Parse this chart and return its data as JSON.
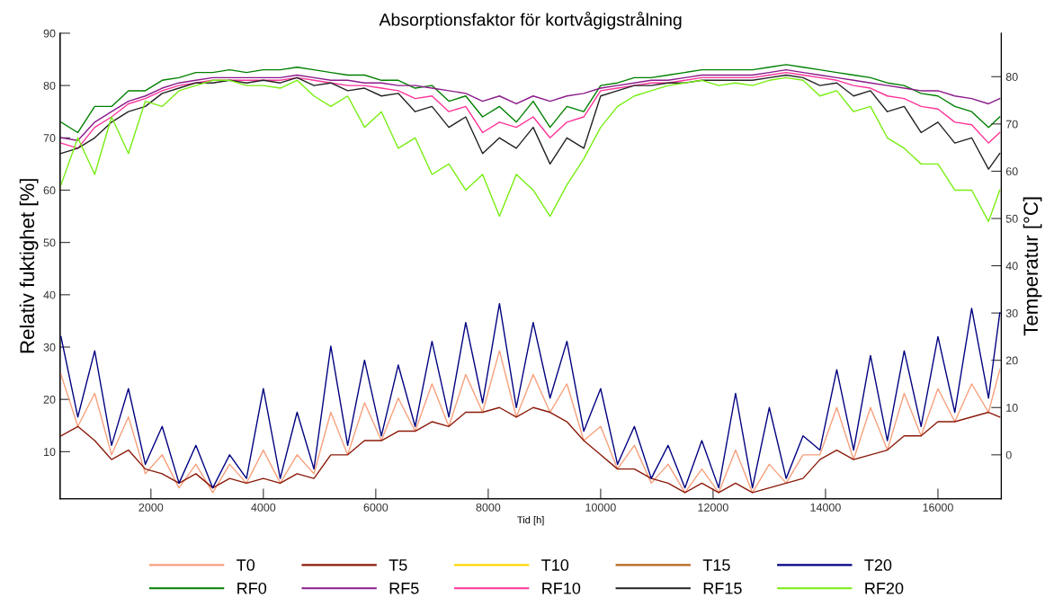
{
  "chart_data": {
    "type": "line",
    "title": "Absorptionsfaktor för kortvågigstrålning",
    "xlabel": "Tid [h]",
    "ylabel": "Relativ fuktighet [%]",
    "y2label": "Temperatur [°C]",
    "x": [
      400,
      700,
      1000,
      1300,
      1600,
      1900,
      2200,
      2500,
      2800,
      3100,
      3400,
      3700,
      4000,
      4300,
      4600,
      4900,
      5200,
      5500,
      5800,
      6100,
      6400,
      6700,
      7000,
      7300,
      7600,
      7900,
      8200,
      8500,
      8800,
      9100,
      9400,
      9700,
      10000,
      10300,
      10600,
      10900,
      11200,
      11500,
      11800,
      12100,
      12400,
      12700,
      13000,
      13300,
      13600,
      13900,
      14200,
      14500,
      14800,
      15100,
      15400,
      15700,
      16000,
      16300,
      16600,
      16900,
      17100
    ],
    "xlim": [
      384,
      17127
    ],
    "xticks": [
      2000,
      4000,
      6000,
      8000,
      10000,
      12000,
      14000,
      16000
    ],
    "ylim": [
      1,
      90
    ],
    "yticks": [
      10,
      20,
      30,
      40,
      50,
      60,
      70,
      80,
      90
    ],
    "y2lim": [
      -9.3,
      89.2
    ],
    "y2ticks": [
      0,
      10,
      20,
      30,
      40,
      50,
      60,
      70,
      80
    ],
    "grid": false,
    "legend": "bottom",
    "marker": "none",
    "line_style": "solid",
    "series": [
      {
        "name": "T0",
        "color": "#f7a07c",
        "axis": "y2",
        "values": [
          17,
          6,
          13,
          0,
          8,
          -4,
          0,
          -7,
          -2,
          -8,
          -2,
          -6,
          1,
          -6,
          0,
          -4,
          9,
          0,
          11,
          3,
          12,
          5,
          15,
          6,
          17,
          9,
          22,
          8,
          17,
          9,
          15,
          3,
          6,
          -3,
          2,
          -6,
          -2,
          -8,
          -3,
          -8,
          1,
          -8,
          -2,
          -6,
          0,
          0,
          10,
          -1,
          10,
          1,
          13,
          4,
          14,
          7,
          15,
          9,
          18
        ]
      },
      {
        "name": "T5",
        "color": "#8b1a0a",
        "axis": "y2",
        "values": [
          4,
          6,
          3,
          -1,
          1,
          -3,
          -4,
          -6,
          -4,
          -7,
          -5,
          -6,
          -5,
          -6,
          -4,
          -5,
          0,
          0,
          3,
          3,
          5,
          5,
          7,
          6,
          9,
          9,
          10,
          8,
          10,
          9,
          7,
          3,
          0,
          -3,
          -3,
          -5,
          -6,
          -8,
          -6,
          -8,
          -6,
          -8,
          -7,
          -6,
          -5,
          -1,
          1,
          -1,
          0,
          1,
          4,
          4,
          7,
          7,
          8,
          9,
          8
        ]
      },
      {
        "name": "T10",
        "color": "#ffd700",
        "axis": "y2",
        "values": [
          null,
          null,
          null,
          null,
          null,
          null,
          null,
          null,
          null,
          null,
          null,
          null,
          null,
          null,
          null,
          null,
          null,
          null,
          null,
          null,
          null,
          null,
          null,
          null,
          null,
          null,
          null,
          null,
          null,
          null,
          null,
          null,
          null,
          null,
          null,
          null,
          null,
          null,
          null,
          null,
          null,
          null,
          null,
          null,
          null,
          null,
          null,
          null,
          null,
          null,
          null,
          null,
          null,
          null,
          null,
          null,
          null
        ]
      },
      {
        "name": "T15",
        "color": "#b5651d",
        "axis": "y2",
        "values": [
          null,
          null,
          null,
          null,
          null,
          null,
          null,
          null,
          null,
          null,
          null,
          null,
          null,
          null,
          null,
          null,
          null,
          null,
          null,
          null,
          null,
          null,
          null,
          null,
          null,
          null,
          null,
          null,
          null,
          null,
          null,
          null,
          null,
          null,
          null,
          null,
          null,
          null,
          null,
          null,
          null,
          null,
          null,
          null,
          null,
          null,
          null,
          null,
          null,
          null,
          null,
          null,
          null,
          null,
          null,
          null,
          null
        ]
      },
      {
        "name": "T20",
        "color": "#000080",
        "axis": "y2",
        "values": [
          25,
          8,
          22,
          2,
          14,
          -2,
          6,
          -6,
          2,
          -7,
          0,
          -5,
          14,
          -5,
          9,
          -3,
          23,
          2,
          20,
          4,
          19,
          6,
          24,
          8,
          28,
          11,
          32,
          10,
          28,
          12,
          24,
          5,
          14,
          -2,
          6,
          -5,
          2,
          -7,
          3,
          -7,
          13,
          -7,
          10,
          -5,
          4,
          1,
          18,
          1,
          21,
          3,
          22,
          6,
          25,
          9,
          31,
          12,
          30
        ]
      },
      {
        "name": "RF0",
        "color": "#008000",
        "values": [
          73,
          71,
          76,
          76,
          79,
          79,
          81,
          81.5,
          82.5,
          82.5,
          83,
          82.5,
          83,
          83,
          83.5,
          83,
          82.5,
          82,
          82,
          81,
          81,
          79.5,
          80,
          77,
          78,
          74,
          76,
          73,
          77,
          72,
          76,
          75,
          80,
          80.5,
          81.5,
          81.5,
          82,
          82.5,
          83,
          83,
          83,
          83,
          83.5,
          84,
          83.5,
          83,
          82.5,
          82,
          81.5,
          80.5,
          80,
          78.5,
          78,
          76,
          75,
          72,
          74
        ]
      },
      {
        "name": "RF5",
        "color": "#8b1a8b",
        "values": [
          70,
          69.5,
          73,
          75,
          77,
          78,
          79.5,
          80.5,
          81,
          81.5,
          81.5,
          81.5,
          81.5,
          81.5,
          82,
          81.5,
          81,
          81,
          80.5,
          80.5,
          80,
          80,
          79.5,
          79,
          78.5,
          77,
          78,
          76.5,
          78,
          77,
          78,
          78.5,
          79.5,
          80,
          80.5,
          81,
          81,
          81.5,
          82,
          82,
          82,
          82,
          82.5,
          83,
          82.5,
          82,
          81.5,
          81,
          80.5,
          80,
          79.5,
          79,
          79,
          78,
          77.5,
          76.5,
          77.5
        ]
      },
      {
        "name": "RF10",
        "color": "#ff3399",
        "values": [
          69,
          68,
          72,
          74,
          76.5,
          77.5,
          79,
          80,
          80.5,
          81,
          81,
          81,
          81,
          81,
          81.5,
          81,
          80.5,
          80,
          80,
          79.5,
          79,
          77.5,
          78,
          75,
          76,
          71,
          73,
          72,
          74,
          70,
          73,
          74,
          79,
          79.5,
          80,
          80.5,
          80.5,
          81,
          81.5,
          81.5,
          81.5,
          81.5,
          82,
          82.5,
          82,
          81.5,
          81,
          80,
          79.5,
          78,
          77.5,
          76,
          75.5,
          73,
          72.5,
          69,
          71
        ]
      },
      {
        "name": "RF15",
        "color": "#222222",
        "values": [
          67,
          68,
          70,
          73,
          75,
          76,
          78.5,
          79.5,
          80.5,
          80.5,
          81,
          80.5,
          81,
          80.5,
          81.5,
          80,
          80.5,
          79,
          79.5,
          78,
          78.5,
          75,
          76,
          72,
          74,
          67,
          70,
          68,
          72,
          65,
          70,
          68,
          78,
          79,
          80,
          80,
          80.5,
          80.5,
          81,
          81,
          81,
          81,
          81.5,
          82,
          81.5,
          80,
          80.5,
          78,
          79,
          75,
          76,
          71,
          73,
          69,
          70,
          64,
          67
        ]
      },
      {
        "name": "RF20",
        "color": "#77ee11",
        "values": [
          61,
          70,
          63,
          74,
          67,
          77,
          76,
          79,
          80,
          81,
          81,
          80,
          80,
          79.5,
          81,
          78,
          76,
          78,
          72,
          75,
          68,
          70,
          63,
          65,
          60,
          63,
          55,
          63,
          60,
          55,
          61,
          66,
          72,
          76,
          78,
          79,
          80,
          80.5,
          81,
          80,
          80.5,
          80,
          81,
          81.5,
          81,
          78,
          79,
          75,
          76,
          70,
          68,
          65,
          65,
          60,
          60,
          54,
          60
        ]
      }
    ]
  }
}
